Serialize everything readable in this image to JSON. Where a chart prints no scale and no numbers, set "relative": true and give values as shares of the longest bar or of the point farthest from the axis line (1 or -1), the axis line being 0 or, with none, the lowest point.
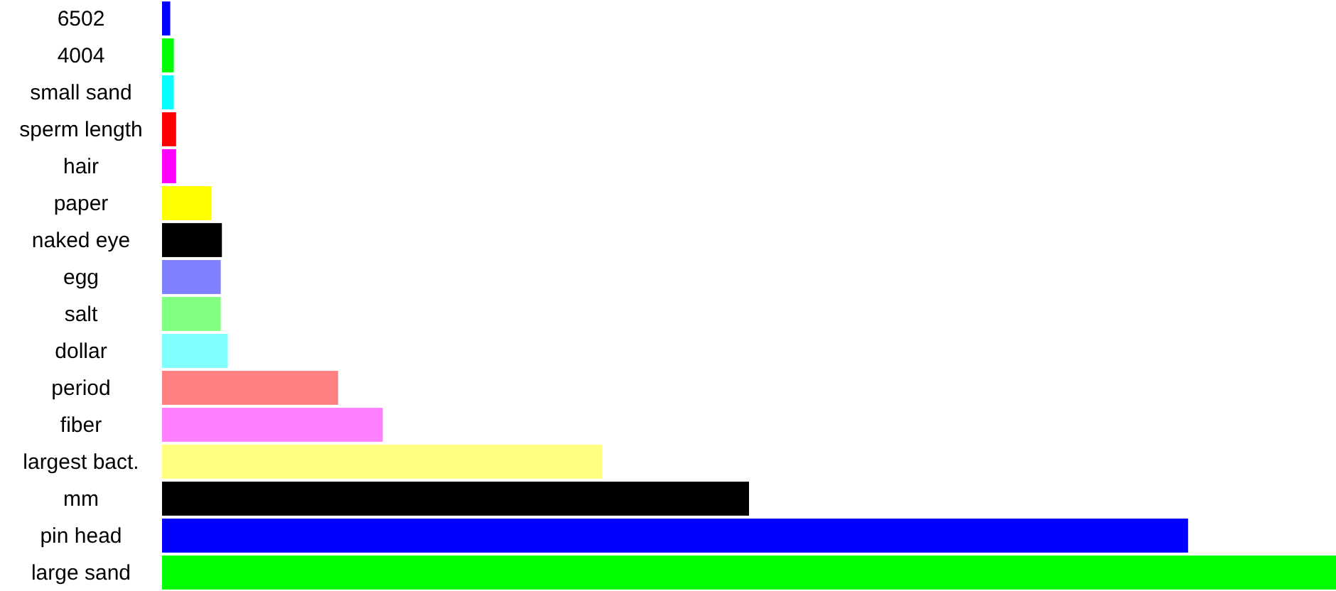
{
  "chart_data": {
    "type": "bar",
    "orientation": "horizontal",
    "relative": true,
    "categories": [
      "6502",
      "4004",
      "small sand",
      "sperm length",
      "hair",
      "paper",
      "naked eye",
      "egg",
      "salt",
      "dollar",
      "period",
      "fiber",
      "largest bact.",
      "mm",
      "pin head",
      "large sand"
    ],
    "values": [
      0.007,
      0.01,
      0.01,
      0.012,
      0.012,
      0.042,
      0.051,
      0.05,
      0.05,
      0.056,
      0.15,
      0.188,
      0.375,
      0.5,
      0.874,
      1
    ],
    "colors": [
      "#0000ff",
      "#00ff00",
      "#00ffff",
      "#ff0000",
      "#ff00ff",
      "#ffff00",
      "#000000",
      "#8080ff",
      "#80ff80",
      "#80ffff",
      "#ff8080",
      "#ff80ff",
      "#ffff80",
      "#000000",
      "#0000ff",
      "#00ff00"
    ]
  }
}
